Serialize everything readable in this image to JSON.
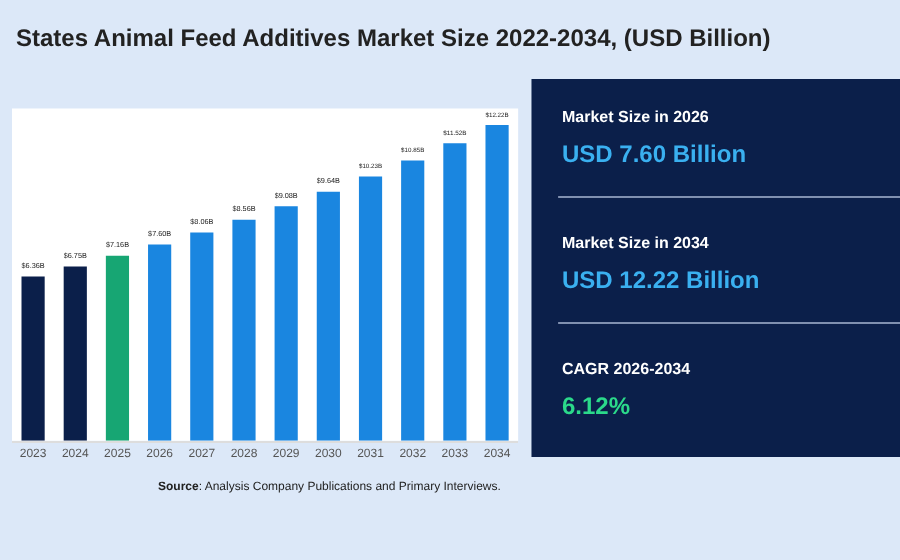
{
  "chart_data": [
    {
      "type": "bar",
      "title": "States Animal Feed Additives Market Size 2022-2034, (USD Billion)",
      "categories": [
        "2023",
        "2024",
        "2025",
        "2026",
        "2027",
        "2028",
        "2029",
        "2030",
        "2031",
        "2032",
        "2033",
        "2034"
      ],
      "values": [
        6.36,
        6.75,
        7.16,
        7.6,
        8.06,
        8.56,
        9.08,
        9.64,
        10.23,
        10.85,
        11.52,
        12.22
      ],
      "colors": [
        "#0b1f4a",
        "#0b1f4a",
        "#17a673",
        "#1a86e0",
        "#1a86e0",
        "#1a86e0",
        "#1a86e0",
        "#1a86e0",
        "#1a86e0",
        "#1a86e0",
        "#1a86e0",
        "#1a86e0"
      ],
      "value_labels": [
        "$6.36B",
        "$6.75B",
        "$7.16B",
        "$7.60B",
        "$8.06B",
        "$8.56B",
        "$9.08B",
        "$9.64B",
        "$10.23B",
        "$10.85B",
        "$11.52B",
        "$12.22B"
      ],
      "annotations": [
        "Source: Analysis Company Publications and Primary Interviews."
      ],
      "legend": false
    },
    {
      "type": "other",
      "annotations": [
        "Market Size in 2026",
        "USD 7.60 Billion",
        "Market Size in 2034",
        "USD 12.22 Billion",
        "CAGR 2026-2034",
        "6.12%"
      ]
    }
  ]
}
